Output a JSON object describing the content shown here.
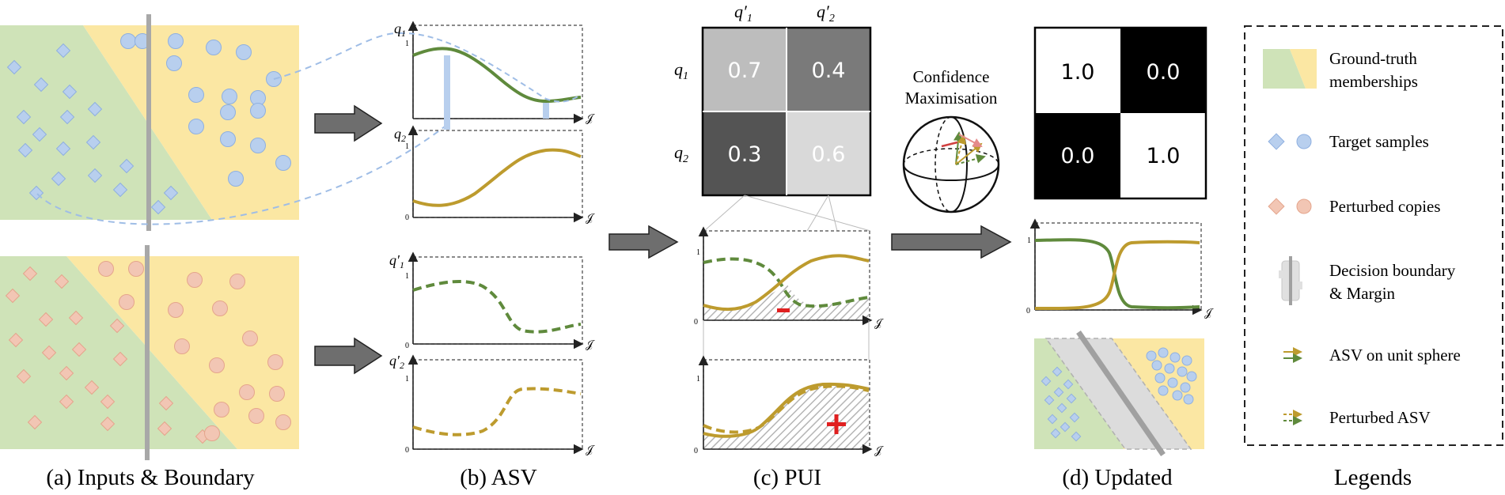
{
  "captions": {
    "a": "(a) Inputs & Boundary",
    "b": "(b) ASV",
    "c": "(c) PUI",
    "d": "(d) Updated",
    "legends": "Legends"
  },
  "asv_axes": {
    "q1": "q",
    "q1_sub": "1",
    "q2": "q",
    "q2_sub": "2",
    "q1p": "q′",
    "q1p_sub": "1",
    "q2p": "q′",
    "q2p_sub": "2",
    "x_symbol": "𝒥",
    "one": "1",
    "zero": "0"
  },
  "matrix": {
    "col_labels": [
      "q′",
      "q′"
    ],
    "col_subs": [
      "1",
      "2"
    ],
    "row_labels": [
      "q",
      "q"
    ],
    "row_subs": [
      "1",
      "2"
    ],
    "cells": [
      "0.7",
      "0.4",
      "0.3",
      "0.6"
    ],
    "cell_colors": [
      "#bdbdbd",
      "#7a7a7a",
      "#545454",
      "#d9d9d9"
    ]
  },
  "sphere": {
    "title_line1": "Confidence",
    "title_line2": "Maximisation"
  },
  "pui": {
    "minus": "−",
    "plus": "+"
  },
  "updated_matrix": {
    "cells": [
      "1.0",
      "0.0",
      "0.0",
      "1.0"
    ],
    "cell_colors": [
      "#ffffff",
      "#000000",
      "#000000",
      "#ffffff"
    ]
  },
  "legend": {
    "items": [
      {
        "label_line1": "Ground-truth",
        "label_line2": "memberships"
      },
      {
        "label_line1": "Target samples",
        "label_line2": ""
      },
      {
        "label_line1": "Perturbed copies",
        "label_line2": ""
      },
      {
        "label_line1": "Decision boundary",
        "label_line2": "& Margin"
      },
      {
        "label_line1": "ASV on unit sphere",
        "label_line2": ""
      },
      {
        "label_line1": "Perturbed ASV",
        "label_line2": ""
      }
    ]
  },
  "colors": {
    "green_region": "#cfe3b8",
    "yellow_region": "#fbe7a3",
    "blue_marker": "#b8cfee",
    "orange_marker": "#f2c6b4",
    "green_curve": "#5f8a3c",
    "olive_curve": "#bd9b2e",
    "boundary": "#a8a8a8"
  }
}
